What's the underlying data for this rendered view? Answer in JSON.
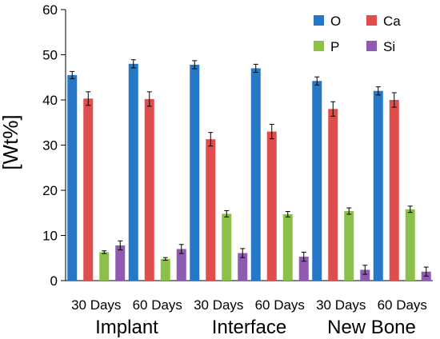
{
  "chart_data": {
    "type": "bar",
    "ylabel": "[Wt%]",
    "ylim": [
      0,
      60
    ],
    "yticks": [
      0,
      10,
      20,
      30,
      40,
      50,
      60
    ],
    "grid": false,
    "legend_position": "top-right",
    "categories": [
      "30 Days",
      "60 Days",
      "30 Days",
      "60 Days",
      "30 Days",
      "60 Days"
    ],
    "groups": [
      {
        "label": "Implant",
        "span": [
          0,
          1
        ]
      },
      {
        "label": "Interface",
        "span": [
          2,
          3
        ]
      },
      {
        "label": "New Bone",
        "span": [
          4,
          5
        ]
      }
    ],
    "series": [
      {
        "name": "O",
        "color": "#2478c6",
        "values": [
          45.5,
          48.0,
          47.8,
          47.0,
          44.2,
          42.0
        ],
        "errors": [
          0.8,
          0.9,
          0.9,
          0.9,
          0.9,
          0.9
        ]
      },
      {
        "name": "Ca",
        "color": "#e04d4d",
        "values": [
          40.3,
          40.2,
          31.3,
          33.0,
          38.0,
          40.0
        ],
        "errors": [
          1.5,
          1.6,
          1.5,
          1.6,
          1.6,
          1.6
        ]
      },
      {
        "name": "P",
        "color": "#8cc04a",
        "values": [
          6.3,
          4.8,
          14.8,
          14.7,
          15.4,
          15.8
        ],
        "errors": [
          0.3,
          0.3,
          0.7,
          0.6,
          0.7,
          0.7
        ]
      },
      {
        "name": "Si",
        "color": "#8f5bb0",
        "values": [
          7.8,
          7.0,
          6.1,
          5.3,
          2.4,
          2.0
        ],
        "errors": [
          1.0,
          1.0,
          1.0,
          1.0,
          1.0,
          1.0
        ]
      }
    ]
  }
}
